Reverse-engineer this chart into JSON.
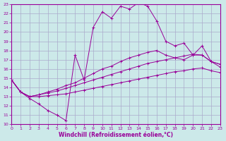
{
  "xlabel": "Windchill (Refroidissement éolien,°C)",
  "xlim": [
    0,
    23
  ],
  "ylim": [
    10,
    23
  ],
  "xticks": [
    0,
    1,
    2,
    3,
    4,
    5,
    6,
    7,
    8,
    9,
    10,
    11,
    12,
    13,
    14,
    15,
    16,
    17,
    18,
    19,
    20,
    21,
    22,
    23
  ],
  "yticks": [
    10,
    11,
    12,
    13,
    14,
    15,
    16,
    17,
    18,
    19,
    20,
    21,
    22,
    23
  ],
  "background_color": "#cce9e9",
  "grid_color": "#aaaacc",
  "line_color": "#990099",
  "lines": [
    {
      "x": [
        0,
        1,
        2,
        3,
        4,
        5,
        6,
        7,
        8,
        9,
        10,
        11,
        12,
        13,
        14,
        15,
        16,
        17,
        18,
        19,
        20,
        21,
        22,
        23
      ],
      "y": [
        14.8,
        13.5,
        12.8,
        12.2,
        11.5,
        11.0,
        10.4,
        17.5,
        14.8,
        20.5,
        22.2,
        21.5,
        22.8,
        22.5,
        23.2,
        22.8,
        21.2,
        19.0,
        18.5,
        18.8,
        17.5,
        18.5,
        16.8,
        16.2
      ]
    },
    {
      "x": [
        0,
        1,
        2,
        3,
        4,
        5,
        6,
        7,
        8,
        9,
        10,
        11,
        12,
        13,
        14,
        15,
        16,
        17,
        18,
        19,
        20,
        21,
        22,
        23
      ],
      "y": [
        14.8,
        13.5,
        13.0,
        13.2,
        13.5,
        13.8,
        14.2,
        14.5,
        15.0,
        15.5,
        16.0,
        16.3,
        16.8,
        17.2,
        17.5,
        17.8,
        18.0,
        17.5,
        17.2,
        17.0,
        17.5,
        17.5,
        16.8,
        16.5
      ]
    },
    {
      "x": [
        0,
        1,
        2,
        3,
        4,
        5,
        6,
        7,
        8,
        9,
        10,
        11,
        12,
        13,
        14,
        15,
        16,
        17,
        18,
        19,
        20,
        21,
        22,
        23
      ],
      "y": [
        14.8,
        13.5,
        13.0,
        13.2,
        13.4,
        13.6,
        13.9,
        14.2,
        14.5,
        14.8,
        15.1,
        15.4,
        15.7,
        16.0,
        16.3,
        16.6,
        16.8,
        17.0,
        17.2,
        17.4,
        17.6,
        17.5,
        16.8,
        16.5
      ]
    },
    {
      "x": [
        0,
        1,
        2,
        3,
        4,
        5,
        6,
        7,
        8,
        9,
        10,
        11,
        12,
        13,
        14,
        15,
        16,
        17,
        18,
        19,
        20,
        21,
        22,
        23
      ],
      "y": [
        14.8,
        13.5,
        13.0,
        13.0,
        13.1,
        13.2,
        13.3,
        13.5,
        13.7,
        13.9,
        14.1,
        14.3,
        14.5,
        14.7,
        14.9,
        15.1,
        15.3,
        15.5,
        15.7,
        15.8,
        16.0,
        16.1,
        15.8,
        15.6
      ]
    }
  ]
}
